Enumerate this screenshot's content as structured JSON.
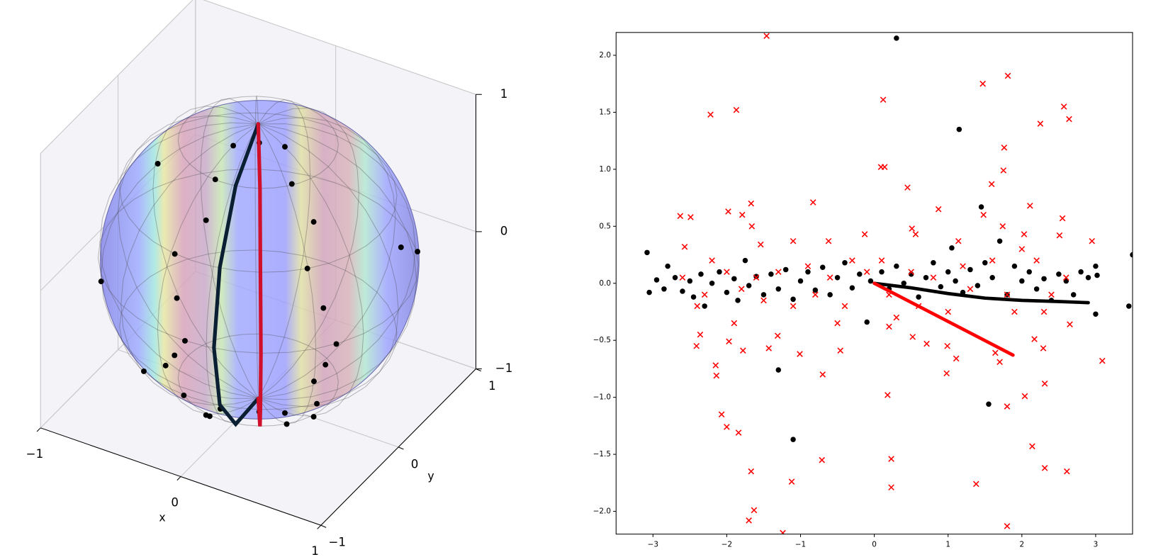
{
  "chart_data": [
    {
      "type": "scatter3d",
      "xlabel": "x",
      "ylabel": "y",
      "xlim": [
        -1,
        1
      ],
      "ylim": [
        -1,
        1
      ],
      "zlim": [
        -1,
        1
      ],
      "xticks": [
        {
          "value": -1,
          "label": "−1"
        },
        0,
        1
      ],
      "yticks": [
        {
          "value": -1,
          "label": "−1"
        },
        0,
        1
      ],
      "zticks": [
        {
          "value": -1,
          "label": "−1"
        },
        0,
        1
      ],
      "series": [
        {
          "kind": "scatter",
          "color": "#000000",
          "x": [
            -0.03,
            0.02,
            -0.12,
            -0.05,
            0.03,
            -0.13,
            -0.05,
            0.02,
            -0.07,
            -0.05,
            0.4,
            0.6,
            0.66,
            0.78,
            0.85,
            0.74,
            0.7,
            0.6,
            0.38,
            0.8,
            0.09,
            0.24,
            -0.04,
            0.09,
            0.24,
            -0.11,
            -0.85,
            0.86,
            0.93,
            -0.49,
            -0.49
          ],
          "y": [
            -0.5,
            -0.71,
            -0.86,
            -0.96,
            -1.0,
            -0.96,
            -0.87,
            -0.71,
            -0.5,
            -0.99,
            -0.29,
            -0.37,
            -0.56,
            -0.57,
            -0.53,
            -0.62,
            -0.51,
            -0.37,
            -0.32,
            -0.58,
            -0.15,
            -0.09,
            -0.25,
            -0.15,
            -0.09,
            -0.29,
            -0.49,
            0.5,
            0.16,
            -0.41,
            -0.59
          ],
          "z": [
            0.87,
            0.71,
            0.5,
            0.26,
            0.0,
            -0.26,
            -0.5,
            -0.71,
            -0.87,
            -0.14,
            0.87,
            0.71,
            0.5,
            0.26,
            0.0,
            -0.26,
            -0.5,
            -0.71,
            -0.87,
            -0.14,
            0.98,
            0.97,
            0.97,
            -0.98,
            -0.97,
            -0.95,
            -0.17,
            0.09,
            0.34,
            0.77,
            -0.64
          ]
        },
        {
          "kind": "line",
          "color": "#0b1f33",
          "x": [
            0,
            0.11,
            0.19,
            0.22,
            0.19,
            0.11,
            0
          ],
          "y": [
            0,
            -0.49,
            -0.84,
            -0.97,
            -0.84,
            -0.49,
            0
          ],
          "z": [
            1,
            0.87,
            0.5,
            0,
            -0.5,
            -0.87,
            -1
          ]
        },
        {
          "kind": "line",
          "color": "#d0102a",
          "x": [
            0,
            0.25,
            0.43,
            0.5,
            0.43,
            0.25,
            0
          ],
          "y": [
            0,
            -0.43,
            -0.75,
            -0.87,
            -0.75,
            -0.43,
            0
          ],
          "z": [
            1,
            0.87,
            0.5,
            0,
            -0.5,
            -0.87,
            -1
          ]
        }
      ]
    },
    {
      "type": "scatter",
      "xlim": [
        -3.5,
        3.5
      ],
      "ylim": [
        -2.2,
        2.2
      ],
      "xticks": [
        {
          "value": -3,
          "label": "−3"
        },
        {
          "value": -2,
          "label": "−2"
        },
        {
          "value": -1,
          "label": "−1"
        },
        0,
        1,
        2,
        3
      ],
      "yticks": [
        {
          "value": -2,
          "label": "−2.0"
        },
        {
          "value": -1.5,
          "label": "−1.5"
        },
        {
          "value": -1,
          "label": "−1.0"
        },
        {
          "value": -0.5,
          "label": "−0.5"
        },
        {
          "value": 0,
          "label": "0.0"
        },
        0.5,
        {
          "value": 1,
          "label": "1.0"
        },
        1.5,
        {
          "value": 2,
          "label": "2.0"
        }
      ],
      "series": [
        {
          "kind": "scatter",
          "marker": "o",
          "color": "#000000",
          "x": [
            -3.08,
            -3.05,
            -2.95,
            -2.85,
            -2.8,
            -2.7,
            -2.6,
            -2.5,
            -2.45,
            -2.35,
            -2.3,
            -2.2,
            -2.1,
            -2.0,
            -1.9,
            -1.85,
            -1.75,
            -1.7,
            -1.6,
            -1.5,
            -1.4,
            -1.3,
            -1.2,
            -1.1,
            -1.0,
            -0.9,
            -0.8,
            -0.7,
            -0.6,
            -0.5,
            -0.4,
            -0.3,
            -0.2,
            -0.1,
            -0.05,
            0.1,
            0.2,
            0.3,
            0.4,
            0.5,
            0.6,
            0.7,
            0.8,
            0.9,
            1.0,
            1.1,
            1.2,
            1.3,
            1.4,
            1.5,
            1.6,
            1.7,
            1.8,
            1.9,
            2.0,
            2.1,
            2.2,
            2.3,
            2.4,
            2.5,
            2.6,
            2.7,
            2.8,
            2.9,
            3.0,
            3.02,
            0.3,
            1.15,
            1.45,
            1.05,
            -1.3,
            -1.1,
            1.55,
            3.0,
            3.5,
            3.45
          ],
          "values": [
            0.27,
            -0.08,
            0.03,
            -0.05,
            0.15,
            0.05,
            -0.07,
            0.02,
            -0.12,
            0.08,
            -0.2,
            0.0,
            0.1,
            -0.08,
            0.04,
            -0.15,
            0.2,
            -0.02,
            0.06,
            -0.1,
            0.08,
            -0.05,
            0.12,
            -0.14,
            0.02,
            0.1,
            -0.06,
            0.14,
            -0.1,
            0.05,
            0.18,
            -0.04,
            0.08,
            -0.34,
            0.02,
            0.1,
            -0.05,
            0.15,
            0.0,
            0.08,
            -0.12,
            0.05,
            0.18,
            -0.03,
            0.1,
            0.02,
            -0.08,
            0.12,
            -0.02,
            0.18,
            0.05,
            0.37,
            -0.1,
            0.15,
            0.02,
            0.1,
            -0.05,
            0.04,
            -0.15,
            0.08,
            0.02,
            -0.1,
            0.1,
            0.05,
            0.15,
            0.07,
            2.15,
            1.35,
            0.67,
            0.31,
            -0.76,
            -1.37,
            -1.06,
            -0.27,
            0.25,
            -0.2
          ]
        },
        {
          "kind": "scatter",
          "marker": "x",
          "color": "#ff0000",
          "x": [
            -1.46,
            1.47,
            1.81,
            0.12,
            -1.87,
            -2.22,
            2.25,
            2.57,
            2.64,
            1.76,
            1.75,
            0.09,
            0.14,
            1.59,
            0.45,
            -0.83,
            -1.67,
            2.11,
            -2.63,
            -2.49,
            -1.98,
            -1.79,
            -1.66,
            0.87,
            1.48,
            2.55,
            0.51,
            1.74,
            2.51,
            2.95,
            -2.57,
            -1.54,
            -1.1,
            -0.62,
            -0.13,
            0.56,
            2.03,
            1.14,
            -2.41,
            -2.36,
            -1.97,
            -2.15,
            -2.14,
            -1.78,
            -1.31,
            -1.43,
            -1.01,
            -0.7,
            -0.46,
            0.52,
            0.71,
            0.99,
            1.11,
            0.98,
            1.64,
            1.7,
            2.17,
            2.29,
            2.31,
            2.65,
            3.09,
            2.04,
            1.8,
            0.18,
            -2.07,
            -2.0,
            -1.84,
            2.14,
            2.31,
            2.61,
            -0.71,
            0.23,
            -1.67,
            -1.12,
            1.38,
            0.23,
            -1.63,
            -1.7,
            1.8,
            -1.24,
            -2.2,
            -2.0,
            -1.8,
            -1.6,
            -1.5,
            -1.3,
            -1.1,
            -0.9,
            -0.8,
            -0.6,
            -0.4,
            -0.3,
            -0.1,
            0.1,
            0.2,
            0.3,
            0.5,
            0.6,
            0.8,
            1.0,
            1.2,
            1.3,
            1.6,
            1.8,
            2.0,
            2.2,
            2.4,
            2.6,
            -2.4,
            -2.6,
            -1.9,
            -0.5,
            0.2,
            1.9,
            2.3,
            -2.3
          ],
          "values": [
            2.17,
            1.75,
            1.82,
            1.61,
            1.52,
            1.48,
            1.4,
            1.55,
            1.44,
            1.19,
            0.99,
            1.02,
            1.02,
            0.87,
            0.84,
            0.71,
            0.7,
            0.68,
            0.59,
            0.58,
            0.63,
            0.6,
            0.5,
            0.65,
            0.6,
            0.57,
            0.48,
            0.5,
            0.42,
            0.37,
            0.32,
            0.34,
            0.37,
            0.37,
            0.43,
            0.43,
            0.43,
            0.37,
            -0.55,
            -0.45,
            -0.51,
            -0.72,
            -0.81,
            -0.59,
            -0.46,
            -0.57,
            -0.62,
            -0.8,
            -0.59,
            -0.47,
            -0.53,
            -0.55,
            -0.66,
            -0.79,
            -0.61,
            -0.69,
            -0.49,
            -0.57,
            -0.88,
            -0.36,
            -0.68,
            -0.99,
            -1.08,
            -0.98,
            -1.15,
            -1.26,
            -1.31,
            -1.43,
            -1.62,
            -1.65,
            -1.55,
            -1.54,
            -1.65,
            -1.74,
            -1.76,
            -1.79,
            -1.99,
            -2.08,
            -2.13,
            -2.19,
            0.2,
            0.1,
            -0.05,
            0.05,
            -0.15,
            0.1,
            -0.2,
            0.15,
            -0.1,
            0.05,
            -0.2,
            0.2,
            0.1,
            0.2,
            -0.1,
            -0.3,
            0.1,
            -0.2,
            0.05,
            -0.25,
            0.15,
            -0.05,
            0.2,
            -0.1,
            0.3,
            0.2,
            -0.1,
            0.05,
            -0.2,
            0.05,
            -0.35,
            -0.35,
            -0.38,
            -0.25,
            -0.25,
            -0.1
          ]
        },
        {
          "kind": "line",
          "color": "#000000",
          "x": [
            0,
            0.5,
            1,
            1.5,
            2,
            2.5,
            2.9
          ],
          "values": [
            0,
            -0.04,
            -0.09,
            -0.13,
            -0.15,
            -0.16,
            -0.17
          ]
        },
        {
          "kind": "line",
          "color": "#ff0000",
          "x": [
            0,
            1.88
          ],
          "values": [
            0,
            -0.63
          ]
        }
      ]
    }
  ]
}
